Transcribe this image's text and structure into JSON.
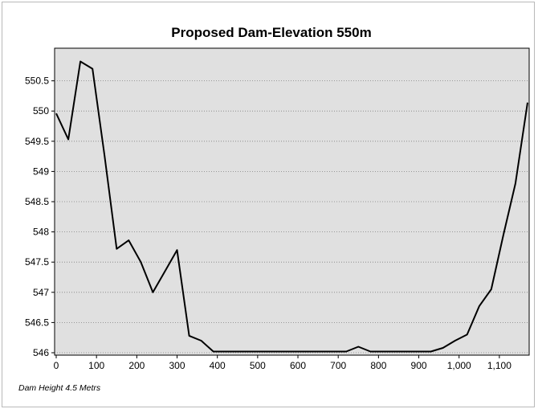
{
  "chart_data": {
    "type": "line",
    "title": "Proposed Dam-Elevation 550m",
    "xlabel": "",
    "ylabel": "",
    "note": "Dam Height 4.5 Metrs",
    "xlim": [
      0,
      1170
    ],
    "ylim": [
      546,
      551
    ],
    "grid": true,
    "x_ticks": [
      0,
      100,
      200,
      300,
      400,
      500,
      600,
      700,
      800,
      900,
      1000,
      1100
    ],
    "x_tick_labels": [
      "0",
      "100",
      "200",
      "300",
      "400",
      "500",
      "600",
      "700",
      "800",
      "900",
      "1,000",
      "1,100"
    ],
    "y_ticks": [
      546,
      546.5,
      547,
      547.5,
      548,
      548.5,
      549,
      549.5,
      550,
      550.5
    ],
    "y_tick_labels": [
      "546",
      "546.5",
      "547",
      "547.5",
      "548",
      "548.5",
      "549",
      "549.5",
      "550",
      "550.5"
    ],
    "colors": {
      "plot_background": "#e0e0e0",
      "line": "#000000",
      "grid": "#808080"
    },
    "series": [
      {
        "x": [
          0,
          30,
          60,
          90,
          120,
          150,
          180,
          210,
          240,
          270,
          300,
          330,
          360,
          390,
          420,
          450,
          480,
          510,
          540,
          570,
          600,
          630,
          660,
          690,
          720,
          750,
          780,
          810,
          840,
          870,
          900,
          930,
          960,
          990,
          1020,
          1050,
          1080,
          1110,
          1140,
          1170
        ],
        "values": [
          549.96,
          549.53,
          550.82,
          550.7,
          549.26,
          547.72,
          547.86,
          547.5,
          547.0,
          547.35,
          547.7,
          546.28,
          546.2,
          546.02,
          546.02,
          546.02,
          546.02,
          546.02,
          546.02,
          546.02,
          546.02,
          546.02,
          546.02,
          546.02,
          546.02,
          546.1,
          546.02,
          546.02,
          546.02,
          546.02,
          546.02,
          546.02,
          546.08,
          546.2,
          546.3,
          546.77,
          547.05,
          547.95,
          548.8,
          550.14
        ]
      }
    ]
  }
}
